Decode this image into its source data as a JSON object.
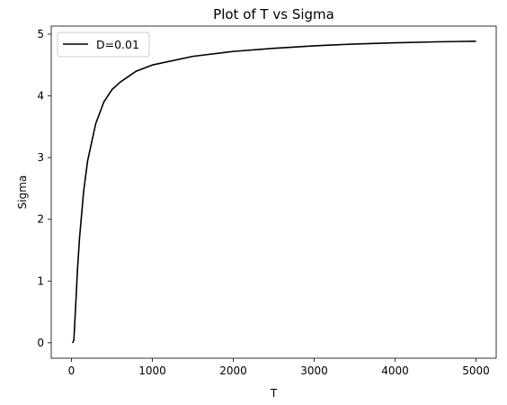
{
  "chart_data": {
    "type": "line",
    "title": "Plot of T vs Sigma",
    "xlabel": "T",
    "ylabel": "Sigma",
    "xlim": [
      -250,
      5250
    ],
    "ylim": [
      -0.25,
      5.13
    ],
    "xticks": [
      0,
      1000,
      2000,
      3000,
      4000,
      5000
    ],
    "yticks": [
      0,
      1,
      2,
      3,
      4,
      5
    ],
    "grid": false,
    "legend_position": "top-left",
    "series": [
      {
        "name": "D=0.01",
        "color": "#000000",
        "x": [
          10,
          20,
          30,
          40,
          50,
          75,
          100,
          150,
          200,
          300,
          400,
          500,
          600,
          800,
          1000,
          1500,
          2000,
          2500,
          3000,
          3500,
          4000,
          4500,
          5000
        ],
        "y": [
          0.0,
          0.01,
          0.05,
          0.3,
          0.55,
          1.2,
          1.7,
          2.45,
          2.95,
          3.55,
          3.9,
          4.1,
          4.22,
          4.4,
          4.5,
          4.64,
          4.72,
          4.77,
          4.81,
          4.84,
          4.86,
          4.875,
          4.885
        ]
      }
    ]
  }
}
